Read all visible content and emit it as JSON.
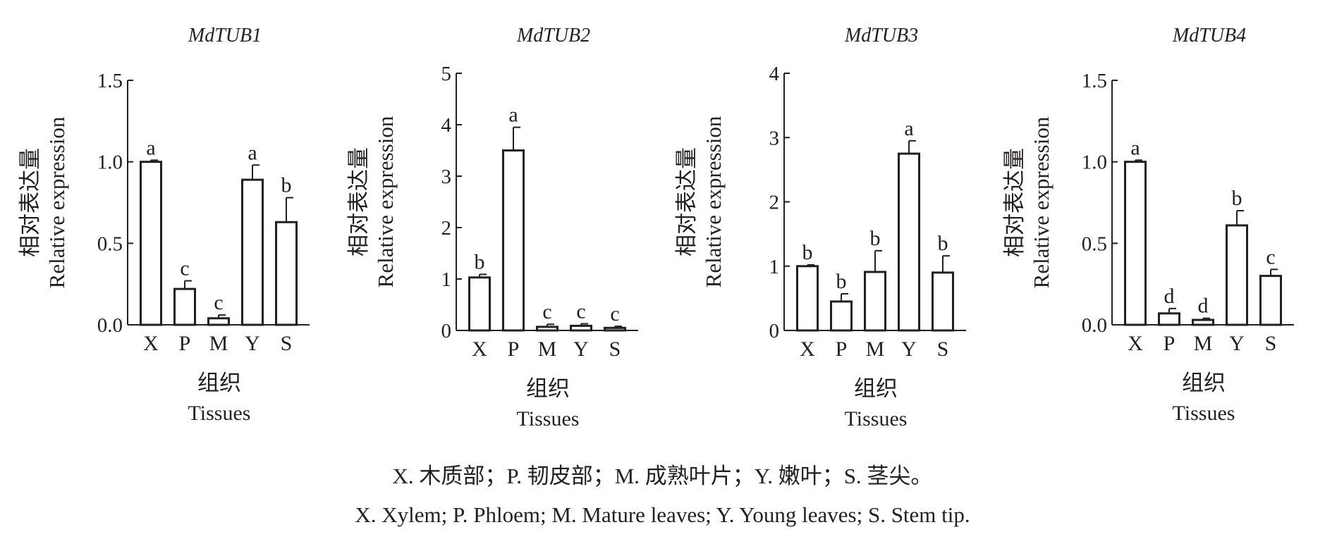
{
  "caption": {
    "zh": "X. 木质部；P. 韧皮部；M. 成熟叶片；Y. 嫩叶；S. 茎尖。",
    "en": "X. Xylem; P. Phloem; M. Mature leaves; Y. Young leaves; S. Stem tip."
  },
  "colors": {
    "ink": "#231f20",
    "bar_fill": "#ffffff"
  },
  "chart_data": [
    {
      "type": "bar",
      "title": "MdTUB1",
      "ylabel_zh": "相对表达量",
      "ylabel_en": "Relative expression",
      "xlabel_zh": "组织",
      "xlabel_en": "Tissues",
      "categories": [
        "X",
        "P",
        "M",
        "Y",
        "S"
      ],
      "values": [
        1.0,
        0.22,
        0.04,
        0.89,
        0.63
      ],
      "errors": [
        0.01,
        0.05,
        0.02,
        0.09,
        0.15
      ],
      "significance": [
        "a",
        "c",
        "c",
        "a",
        "b"
      ],
      "ylim": [
        0,
        1.5
      ],
      "yticks": [
        0,
        0.5,
        1.0,
        1.5
      ],
      "ytick_labels": [
        "0.0",
        "0.5",
        "1.0",
        "1.5"
      ]
    },
    {
      "type": "bar",
      "title": "MdTUB2",
      "ylabel_zh": "相对表达量",
      "ylabel_en": "Relative expression",
      "xlabel_zh": "组织",
      "xlabel_en": "Tissues",
      "categories": [
        "X",
        "P",
        "M",
        "Y",
        "S"
      ],
      "values": [
        1.03,
        3.5,
        0.07,
        0.09,
        0.05
      ],
      "errors": [
        0.06,
        0.45,
        0.05,
        0.04,
        0.03
      ],
      "significance": [
        "b",
        "a",
        "c",
        "c",
        "c"
      ],
      "ylim": [
        0,
        5
      ],
      "yticks": [
        0,
        1,
        2,
        3,
        4,
        5
      ],
      "ytick_labels": [
        "0",
        "1",
        "2",
        "3",
        "4",
        "5"
      ]
    },
    {
      "type": "bar",
      "title": "MdTUB3",
      "ylabel_zh": "相对表达量",
      "ylabel_en": "Relative expression",
      "xlabel_zh": "组织",
      "xlabel_en": "Tissues",
      "categories": [
        "X",
        "P",
        "M",
        "Y",
        "S"
      ],
      "values": [
        1.0,
        0.45,
        0.91,
        2.75,
        0.9
      ],
      "errors": [
        0.02,
        0.12,
        0.33,
        0.2,
        0.26
      ],
      "significance": [
        "b",
        "b",
        "b",
        "a",
        "b"
      ],
      "ylim": [
        0,
        4
      ],
      "yticks": [
        0,
        1,
        2,
        3,
        4
      ],
      "ytick_labels": [
        "0",
        "1",
        "2",
        "3",
        "4"
      ]
    },
    {
      "type": "bar",
      "title": "MdTUB4",
      "ylabel_zh": "相对表达量",
      "ylabel_en": "Relative expression",
      "xlabel_zh": "组织",
      "xlabel_en": "Tissues",
      "categories": [
        "X",
        "P",
        "M",
        "Y",
        "S"
      ],
      "values": [
        1.0,
        0.07,
        0.03,
        0.61,
        0.3
      ],
      "errors": [
        0.01,
        0.03,
        0.01,
        0.09,
        0.04
      ],
      "significance": [
        "a",
        "d",
        "d",
        "b",
        "c"
      ],
      "ylim": [
        0,
        1.5
      ],
      "yticks": [
        0,
        0.5,
        1.0,
        1.5
      ],
      "ytick_labels": [
        "0.0",
        "0.5",
        "1.0",
        "1.5"
      ]
    }
  ]
}
